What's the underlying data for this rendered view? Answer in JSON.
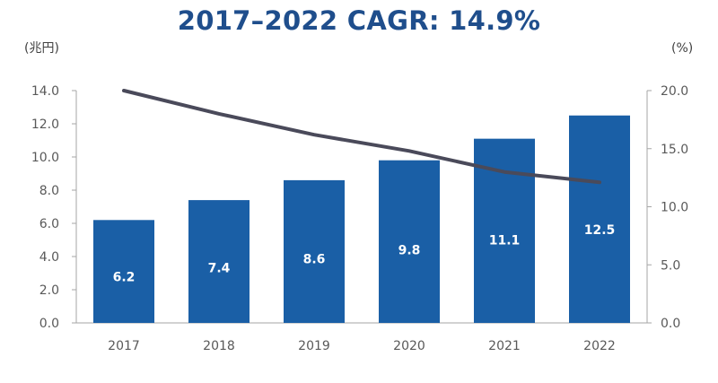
{
  "chart_data": {
    "type": "bar",
    "title": "2017–2022 CAGR: 14.9%",
    "categories": [
      "2017",
      "2018",
      "2019",
      "2020",
      "2021",
      "2022"
    ],
    "series": [
      {
        "type": "bar",
        "axis": "left",
        "values": [
          6.2,
          7.4,
          8.6,
          9.8,
          11.1,
          12.5
        ],
        "data_labels": [
          "6.2",
          "7.4",
          "8.6",
          "9.8",
          "11.1",
          "12.5"
        ],
        "color": "#1a5fa6"
      },
      {
        "type": "line",
        "axis": "right",
        "values": [
          20.0,
          18.0,
          16.2,
          14.8,
          13.0,
          12.1
        ],
        "color": "#4a4a5a"
      }
    ],
    "y_left": {
      "unit": "(兆円)",
      "ylim": [
        0,
        14
      ],
      "ticks": [
        "0.0",
        "2.0",
        "4.0",
        "6.0",
        "8.0",
        "10.0",
        "12.0",
        "14.0"
      ]
    },
    "y_right": {
      "unit": "(%)",
      "ylim": [
        0,
        20
      ],
      "ticks": [
        "0.0",
        "5.0",
        "10.0",
        "15.0",
        "20.0"
      ]
    },
    "grid": false,
    "legend": "none"
  }
}
